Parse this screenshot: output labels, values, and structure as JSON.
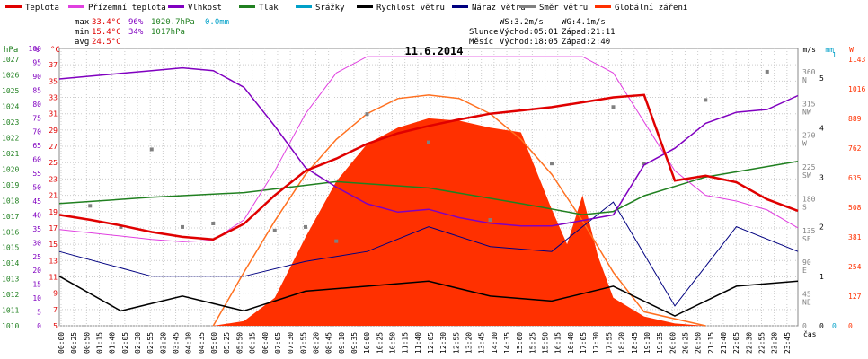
{
  "chart_data": {
    "type": "line",
    "title": "11.6.2014",
    "legend": [
      {
        "label": "Teplota",
        "color": "#e00000"
      },
      {
        "label": "Přízemní teplota",
        "color": "#e040e0"
      },
      {
        "label": "Vlhkost",
        "color": "#8000c0"
      },
      {
        "label": "Tlak",
        "color": "#208020"
      },
      {
        "label": "Srážky",
        "color": "#00a0c8"
      },
      {
        "label": "Rychlost větru",
        "color": "#000000"
      },
      {
        "label": "Náraz větru",
        "color": "#000080"
      },
      {
        "label": "Směr větru",
        "color": "#808080"
      },
      {
        "label": "Globální záření",
        "color": "#ff3000"
      }
    ],
    "stats": {
      "max_label": "max",
      "max_temp": "33.4°C",
      "max_hum": "96%",
      "max_press": "1020.7hPa",
      "max_rain": "0.0mm",
      "min_label": "min",
      "min_temp": "15.4°C",
      "min_hum": "34%",
      "min_press": "1017hPa",
      "avg_label": "avg",
      "avg_temp": "24.5°C",
      "ws": "WS:3.2m/s",
      "wg": "WG:4.1m/s",
      "sun_label": "Slunce",
      "sun_rise": "Východ:05:01",
      "sun_set": "Západ:21:11",
      "moon_label": "Měsíc",
      "moon_rise": "Východ:18:05",
      "moon_set": "Západ:2:40"
    },
    "axes": {
      "hpa_unit": "hPa",
      "pct_unit": "%",
      "c_unit": "°C",
      "ms_unit": "m/s",
      "mm_unit": "mm",
      "w_unit": "W",
      "hpa_ticks": [
        "1027",
        "1026",
        "1025",
        "1024",
        "1023",
        "1022",
        "1021",
        "1020",
        "1019",
        "1018",
        "1017",
        "1016",
        "1015",
        "1014",
        "1013",
        "1012",
        "1011",
        "1010"
      ],
      "pct_ticks": [
        "100",
        "95",
        "90",
        "85",
        "80",
        "75",
        "70",
        "65",
        "60",
        "55",
        "50",
        "45",
        "40",
        "35",
        "30",
        "25",
        "20",
        "15",
        "10",
        "5",
        "0"
      ],
      "c_ticks": [
        "37",
        "35",
        "33",
        "31",
        "29",
        "27",
        "25",
        "23",
        "21",
        "19",
        "17",
        "15",
        "13",
        "11",
        "9",
        "7",
        "5"
      ],
      "dir_ticks": [
        {
          "deg": "360",
          "lbl": "N"
        },
        {
          "deg": "315",
          "lbl": "NW"
        },
        {
          "deg": "270",
          "lbl": "W"
        },
        {
          "deg": "225",
          "lbl": "SW"
        },
        {
          "deg": "180",
          "lbl": "S"
        },
        {
          "deg": "135",
          "lbl": "SE"
        },
        {
          "deg": "90",
          "lbl": "E"
        },
        {
          "deg": "45",
          "lbl": "NE"
        },
        {
          "deg": "0",
          "lbl": ""
        }
      ],
      "ms_ticks": [
        "5",
        "4",
        "3",
        "2",
        "1",
        "0"
      ],
      "mm_ticks": [
        "1",
        "0"
      ],
      "w_ticks": [
        "1143",
        "1016",
        "889",
        "762",
        "635",
        "508",
        "381",
        "254",
        "127",
        "0"
      ],
      "x_label": "čas",
      "x_ticks": [
        "00:00",
        "00:25",
        "00:50",
        "01:15",
        "01:40",
        "02:05",
        "02:30",
        "02:55",
        "03:20",
        "03:45",
        "04:10",
        "04:35",
        "05:00",
        "05:25",
        "05:50",
        "06:15",
        "06:40",
        "07:05",
        "07:30",
        "07:55",
        "08:20",
        "08:45",
        "09:10",
        "09:35",
        "10:00",
        "10:25",
        "10:50",
        "11:15",
        "11:40",
        "12:05",
        "12:30",
        "12:55",
        "13:20",
        "13:45",
        "14:10",
        "14:35",
        "15:00",
        "15:25",
        "15:50",
        "16:15",
        "16:40",
        "17:05",
        "17:30",
        "17:55",
        "18:20",
        "18:45",
        "19:10",
        "19:35",
        "20:00",
        "20:25",
        "20:50",
        "21:15",
        "21:40",
        "22:05",
        "22:30",
        "22:55",
        "23:20",
        "23:45"
      ]
    },
    "series": {
      "temperature_c": [
        [
          0,
          18.6
        ],
        [
          1,
          18
        ],
        [
          2,
          17.3
        ],
        [
          3,
          16.5
        ],
        [
          4,
          15.9
        ],
        [
          5,
          15.6
        ],
        [
          6,
          17.5
        ],
        [
          7,
          21
        ],
        [
          8,
          24
        ],
        [
          9,
          25.5
        ],
        [
          10,
          27.3
        ],
        [
          11,
          28.6
        ],
        [
          12,
          29.5
        ],
        [
          13,
          30.3
        ],
        [
          14,
          31
        ],
        [
          15,
          31.4
        ],
        [
          16,
          31.8
        ],
        [
          17,
          32.4
        ],
        [
          18,
          33
        ],
        [
          19,
          33.3
        ],
        [
          20,
          22.8
        ],
        [
          21,
          23.4
        ],
        [
          22,
          22.6
        ],
        [
          23,
          20.5
        ],
        [
          24,
          19.1
        ]
      ],
      "ground_temp_c": [
        [
          0,
          16.8
        ],
        [
          1,
          16.4
        ],
        [
          2,
          16
        ],
        [
          3,
          15.6
        ],
        [
          4,
          15.3
        ],
        [
          5,
          15.5
        ],
        [
          6,
          18
        ],
        [
          7,
          24
        ],
        [
          8,
          31
        ],
        [
          9,
          36
        ],
        [
          10,
          38
        ],
        [
          11,
          38
        ],
        [
          12,
          38
        ],
        [
          13,
          38
        ],
        [
          14,
          38
        ],
        [
          15,
          38
        ],
        [
          16,
          38
        ],
        [
          17,
          38
        ],
        [
          18,
          36
        ],
        [
          19,
          30
        ],
        [
          20,
          24
        ],
        [
          21,
          21
        ],
        [
          22,
          20.3
        ],
        [
          23,
          19.2
        ],
        [
          24,
          17
        ]
      ],
      "humidity_pct": [
        [
          0,
          89
        ],
        [
          1,
          90
        ],
        [
          2,
          91
        ],
        [
          3,
          92
        ],
        [
          4,
          93
        ],
        [
          5,
          92
        ],
        [
          6,
          86
        ],
        [
          7,
          72
        ],
        [
          8,
          57
        ],
        [
          9,
          50
        ],
        [
          10,
          44
        ],
        [
          11,
          41
        ],
        [
          12,
          42
        ],
        [
          13,
          39
        ],
        [
          14,
          37
        ],
        [
          15,
          36
        ],
        [
          16,
          36
        ],
        [
          17,
          38
        ],
        [
          18,
          40
        ],
        [
          19,
          58
        ],
        [
          20,
          64
        ],
        [
          21,
          73
        ],
        [
          22,
          77
        ],
        [
          23,
          78
        ],
        [
          24,
          83
        ]
      ],
      "pressure_hpa": [
        [
          0,
          1017.8
        ],
        [
          3,
          1018.2
        ],
        [
          6,
          1018.5
        ],
        [
          9,
          1019.2
        ],
        [
          12,
          1018.8
        ],
        [
          15,
          1017.8
        ],
        [
          17,
          1017.1
        ],
        [
          18,
          1017.3
        ],
        [
          19,
          1018.3
        ],
        [
          21,
          1019.5
        ],
        [
          24,
          1020.5
        ]
      ],
      "wind_ms": [
        [
          0,
          1
        ],
        [
          2,
          0.3
        ],
        [
          4,
          0.6
        ],
        [
          6,
          0.3
        ],
        [
          8,
          0.7
        ],
        [
          10,
          0.8
        ],
        [
          12,
          0.9
        ],
        [
          14,
          0.6
        ],
        [
          16,
          0.5
        ],
        [
          18,
          0.8
        ],
        [
          20,
          0.2
        ],
        [
          22,
          0.8
        ],
        [
          24,
          0.9
        ]
      ],
      "gust_ms": [
        [
          0,
          1.5
        ],
        [
          3,
          1
        ],
        [
          6,
          1
        ],
        [
          8,
          1.3
        ],
        [
          10,
          1.5
        ],
        [
          12,
          2
        ],
        [
          14,
          1.6
        ],
        [
          16,
          1.5
        ],
        [
          18,
          2.5
        ],
        [
          20,
          0.4
        ],
        [
          22,
          2
        ],
        [
          24,
          1.5
        ]
      ],
      "wind_dir_deg": [
        [
          1,
          170
        ],
        [
          2,
          140
        ],
        [
          3,
          250
        ],
        [
          4,
          140
        ],
        [
          5,
          145
        ],
        [
          7,
          135
        ],
        [
          8,
          140
        ],
        [
          9,
          120
        ],
        [
          10,
          300
        ],
        [
          12,
          260
        ],
        [
          14,
          150
        ],
        [
          16,
          230
        ],
        [
          18,
          310
        ],
        [
          19,
          230
        ],
        [
          21,
          320
        ],
        [
          23,
          360
        ]
      ],
      "radiation_wm2": [
        [
          5,
          0
        ],
        [
          6,
          20
        ],
        [
          7,
          120
        ],
        [
          8,
          380
        ],
        [
          9,
          620
        ],
        [
          10,
          780
        ],
        [
          11,
          850
        ],
        [
          12,
          890
        ],
        [
          13,
          880
        ],
        [
          14,
          850
        ],
        [
          15,
          830
        ],
        [
          16,
          500
        ],
        [
          16.5,
          350
        ],
        [
          17,
          560
        ],
        [
          17.5,
          300
        ],
        [
          18,
          120
        ],
        [
          19,
          40
        ],
        [
          20,
          10
        ],
        [
          21,
          0
        ]
      ],
      "theoretical_radiation_wm2": [
        [
          5,
          0
        ],
        [
          6,
          230
        ],
        [
          7,
          450
        ],
        [
          8,
          650
        ],
        [
          9,
          800
        ],
        [
          10,
          910
        ],
        [
          11,
          975
        ],
        [
          12,
          990
        ],
        [
          13,
          975
        ],
        [
          14,
          910
        ],
        [
          15,
          800
        ],
        [
          16,
          650
        ],
        [
          17,
          450
        ],
        [
          18,
          230
        ],
        [
          19,
          60
        ],
        [
          21,
          0
        ]
      ]
    }
  }
}
